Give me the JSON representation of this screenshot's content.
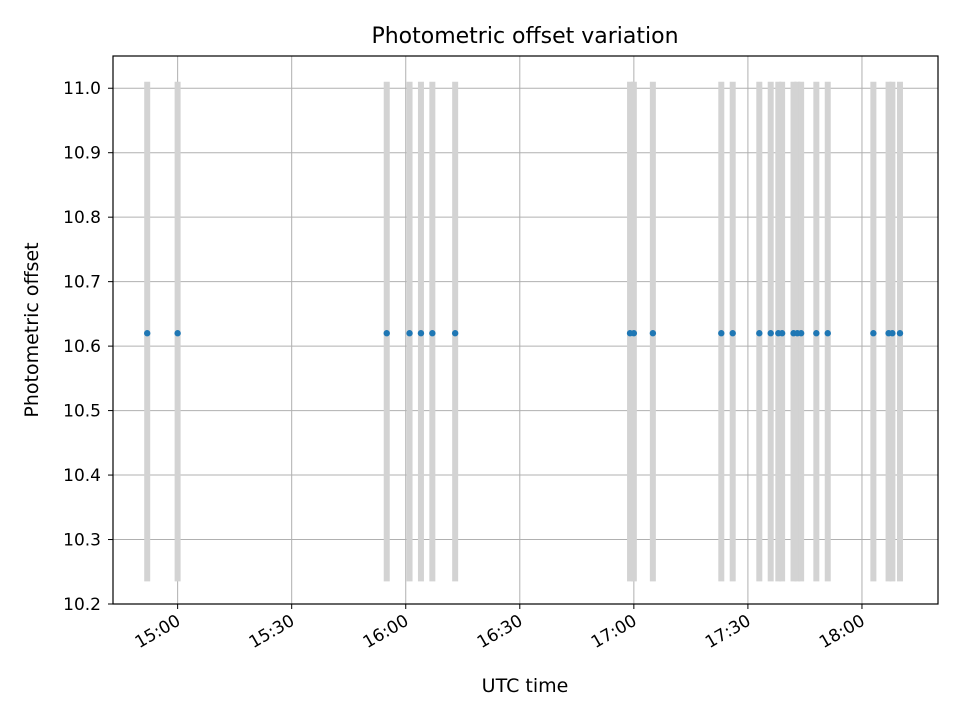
{
  "chart_data": {
    "type": "scatter",
    "title": "Photometric offset variation",
    "xlabel": "UTC time",
    "ylabel": "Photometric offset",
    "x_axis_type": "time",
    "xlim": [
      "14:43",
      "18:20"
    ],
    "ylim": [
      10.2,
      11.05
    ],
    "x_ticks": [
      "15:00",
      "15:30",
      "16:00",
      "16:30",
      "17:00",
      "17:30",
      "18:00"
    ],
    "y_ticks": [
      "10.2",
      "10.3",
      "10.4",
      "10.5",
      "10.6",
      "10.7",
      "10.8",
      "10.9",
      "11.0"
    ],
    "grid": true,
    "series": [
      {
        "color": "#1f77b4",
        "marker": "dot",
        "x": [
          "14:52",
          "15:00",
          "15:55",
          "16:01",
          "16:04",
          "16:07",
          "16:13",
          "16:59",
          "17:00",
          "17:05",
          "17:23",
          "17:26",
          "17:33",
          "17:36",
          "17:38",
          "17:39",
          "17:42",
          "17:43",
          "17:44",
          "17:48",
          "17:51",
          "18:03",
          "18:07",
          "18:08",
          "18:10"
        ],
        "y": [
          10.62,
          10.62,
          10.62,
          10.62,
          10.62,
          10.62,
          10.62,
          10.62,
          10.62,
          10.62,
          10.62,
          10.62,
          10.62,
          10.62,
          10.62,
          10.62,
          10.62,
          10.62,
          10.62,
          10.62,
          10.62,
          10.62,
          10.62,
          10.62,
          10.62
        ],
        "error_low": 10.235,
        "error_high": 11.01,
        "error_color": "#d3d3d3"
      }
    ]
  }
}
